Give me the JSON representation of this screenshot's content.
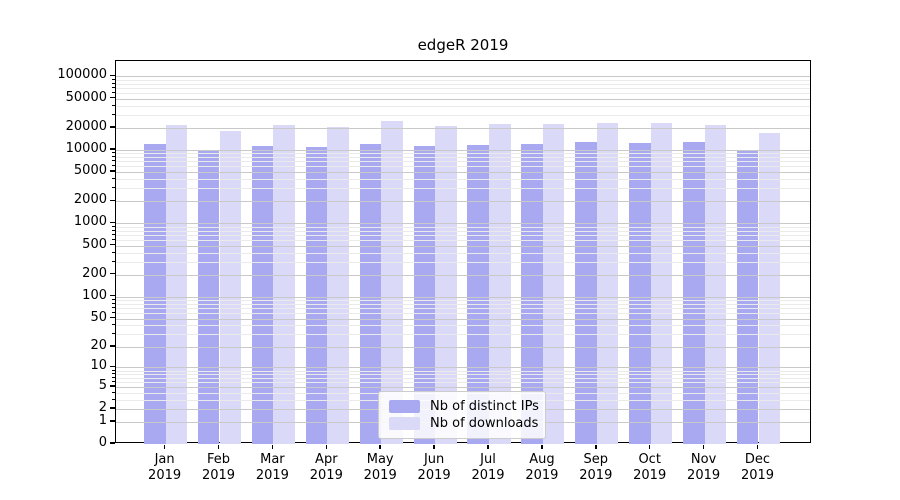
{
  "chart_data": {
    "type": "bar",
    "title": "edgeR 2019",
    "categories": [
      "Jan",
      "Feb",
      "Mar",
      "Apr",
      "May",
      "Jun",
      "Jul",
      "Aug",
      "Sep",
      "Oct",
      "Nov",
      "Dec"
    ],
    "x_year_label": "2019",
    "series": [
      {
        "name": "Nb of distinct IPs",
        "color": "#a9a9f1",
        "values": [
          11900,
          10000,
          11500,
          11000,
          11900,
          11400,
          11700,
          12100,
          12700,
          12400,
          12700,
          9800
        ]
      },
      {
        "name": "Nb of downloads",
        "color": "#dadaf8",
        "values": [
          21900,
          18400,
          22100,
          20600,
          25000,
          21200,
          22400,
          22700,
          23100,
          23100,
          21900,
          16900
        ]
      }
    ],
    "yscale": "log1p",
    "yticks": [
      0,
      1,
      2,
      5,
      10,
      20,
      50,
      100,
      200,
      500,
      1000,
      2000,
      5000,
      10000,
      20000,
      50000,
      100000
    ],
    "ylim": [
      0,
      162000
    ],
    "grid": true,
    "legend_position": "lower center"
  }
}
